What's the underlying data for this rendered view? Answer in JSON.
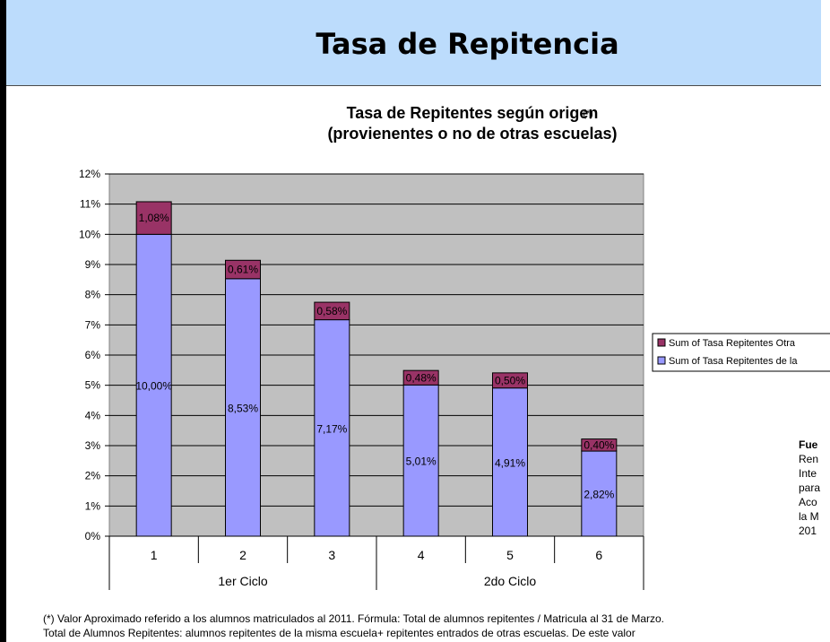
{
  "page": {
    "title": "Tasa de Repitencia",
    "footnote_line1": "(*) Valor Aproximado referido a los alumnos matriculados al 2011. Fórmula:  Total de alumnos repitentes / Matricula al 31 de Marzo.",
    "footnote_line2": "Total de Alumnos Repitentes: alumnos repitentes de la  misma escuela+ repitentes entrados de otras escuelas. De este valor",
    "side_source_lines": [
      "Fue",
      "Ren",
      "Inte",
      "para",
      "Aco",
      "la M",
      "201"
    ]
  },
  "chart_data": {
    "type": "bar",
    "stacked": true,
    "title_line1": "Tasa de Repitentes según origen",
    "title_marker": "(*)",
    "title_line2": "(provienentes o no de otras escuelas)",
    "categories": [
      "1",
      "2",
      "3",
      "4",
      "5",
      "6"
    ],
    "groups": [
      {
        "label": "1er Ciclo",
        "categories": [
          "1",
          "2",
          "3"
        ]
      },
      {
        "label": "2do Ciclo",
        "categories": [
          "4",
          "5",
          "6"
        ]
      }
    ],
    "y_unit": "%",
    "ylim": [
      0,
      12
    ],
    "y_ticks": [
      0,
      1,
      2,
      3,
      4,
      5,
      6,
      7,
      8,
      9,
      10,
      11,
      12
    ],
    "y_tick_labels": [
      "0%",
      "1%",
      "2%",
      "3%",
      "4%",
      "5%",
      "6%",
      "7%",
      "8%",
      "9%",
      "10%",
      "11%",
      "12%"
    ],
    "grid": true,
    "legend_position": "right",
    "plot_background": "#c0c0c0",
    "series": [
      {
        "name": "Sum of Tasa Repitentes de la",
        "color": "#9999ff",
        "values": [
          10.0,
          8.53,
          7.17,
          5.01,
          4.91,
          2.82
        ],
        "labels": [
          "10,00%",
          "8,53%",
          "7,17%",
          "5,01%",
          "4,91%",
          "2,82%"
        ]
      },
      {
        "name": "Sum of Tasa Repitentes Otra",
        "color": "#993366",
        "values": [
          1.08,
          0.61,
          0.58,
          0.48,
          0.5,
          0.4
        ],
        "labels": [
          "1,08%",
          "0,61%",
          "0,58%",
          "0,48%",
          "0,50%",
          "0,40%"
        ]
      }
    ]
  }
}
